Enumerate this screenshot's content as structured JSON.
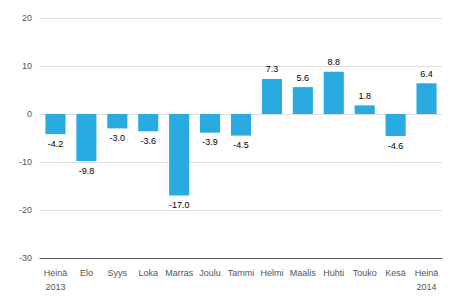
{
  "chart_data": {
    "type": "bar",
    "categories": [
      "Heinä",
      "Elo",
      "Syys",
      "Loka",
      "Marras",
      "Joulu",
      "Tammi",
      "Helmi",
      "Maalis",
      "Huhti",
      "Touko",
      "Kesä",
      "Heinä"
    ],
    "values": [
      -4.2,
      -9.8,
      -3.0,
      -3.6,
      -17.0,
      -3.9,
      -4.5,
      7.3,
      5.6,
      8.8,
      1.8,
      -4.6,
      6.4
    ],
    "value_labels": [
      "-4.2",
      "-9.8",
      "-3.0",
      "-3.6",
      "-17.0",
      "-3.9",
      "-4.5",
      "7.3",
      "5.6",
      "8.8",
      "1.8",
      "-4.6",
      "6.4"
    ],
    "data_labels": true,
    "color": "#29ABE2",
    "ylim": [
      -30,
      20
    ],
    "yticks": [
      -30,
      -20,
      -10,
      0,
      10,
      20
    ],
    "grid": true,
    "annotations": [
      {
        "text": "2013",
        "category_index": 0
      },
      {
        "text": "2014",
        "category_index": 12
      }
    ]
  }
}
